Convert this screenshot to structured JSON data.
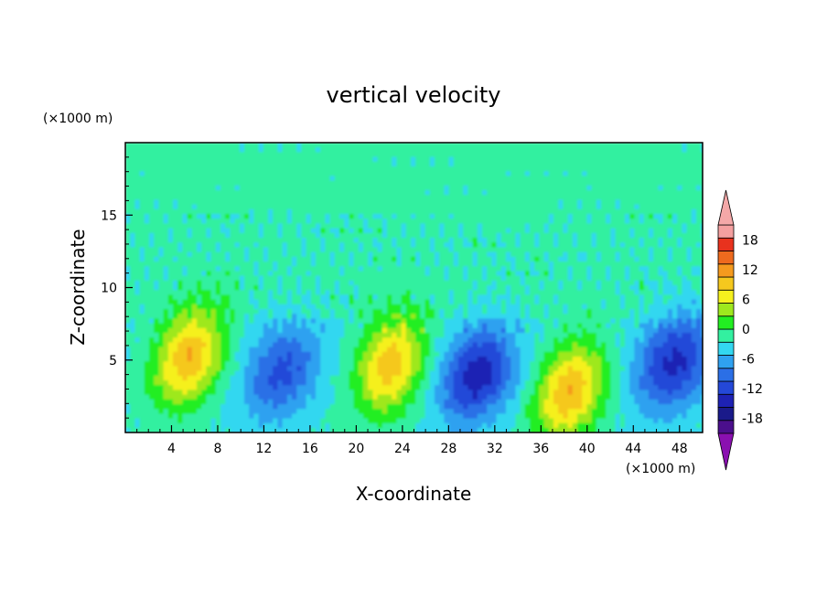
{
  "chart_data": {
    "type": "heatmap",
    "title": "vertical velocity",
    "xlabel": "X-coordinate",
    "ylabel": "Z-coordinate",
    "x_unit": "(×1000 m)",
    "y_unit": "(×1000 m)",
    "xlim": [
      0,
      50
    ],
    "ylim": [
      0,
      20
    ],
    "x_ticks": [
      4,
      8,
      12,
      16,
      20,
      24,
      28,
      32,
      36,
      40,
      44,
      48
    ],
    "y_ticks": [
      5,
      10,
      15
    ],
    "colorbar": {
      "tick_labels": [
        "18",
        "12",
        "6",
        "0",
        "-6",
        "-12",
        "-18"
      ],
      "tick_values": [
        18,
        12,
        6,
        0,
        -6,
        -12,
        -18
      ],
      "levels": [
        -21,
        -18,
        -15,
        -12,
        -9,
        -6,
        -3,
        0,
        3,
        6,
        9,
        12,
        15,
        18,
        21
      ],
      "colors": [
        "#4b0f8c",
        "#1a1a8a",
        "#1e22b4",
        "#2448d8",
        "#2b6fe6",
        "#2fa1f0",
        "#33d7f0",
        "#33f0a0",
        "#22ee22",
        "#9ee81e",
        "#f5f01e",
        "#f5c81e",
        "#f59a1e",
        "#ee6a1e",
        "#e8321e",
        "#f4a0a0"
      ],
      "under_color": "#8a10b0",
      "over_color": "#f4a8a8",
      "extend": "both"
    },
    "features": [
      {
        "kind": "updraft",
        "x": 5.5,
        "z": 5.2,
        "peak": 15
      },
      {
        "kind": "updraft",
        "x": 23,
        "z": 4.6,
        "peak": 14
      },
      {
        "kind": "updraft",
        "x": 38.5,
        "z": 2.8,
        "peak": 15
      },
      {
        "kind": "downdraft",
        "x": 13.5,
        "z": 4.2,
        "peak": -10
      },
      {
        "kind": "downdraft",
        "x": 30.5,
        "z": 4.0,
        "peak": -14
      },
      {
        "kind": "downdraft",
        "x": 47.5,
        "z": 4.8,
        "peak": -13
      }
    ]
  }
}
